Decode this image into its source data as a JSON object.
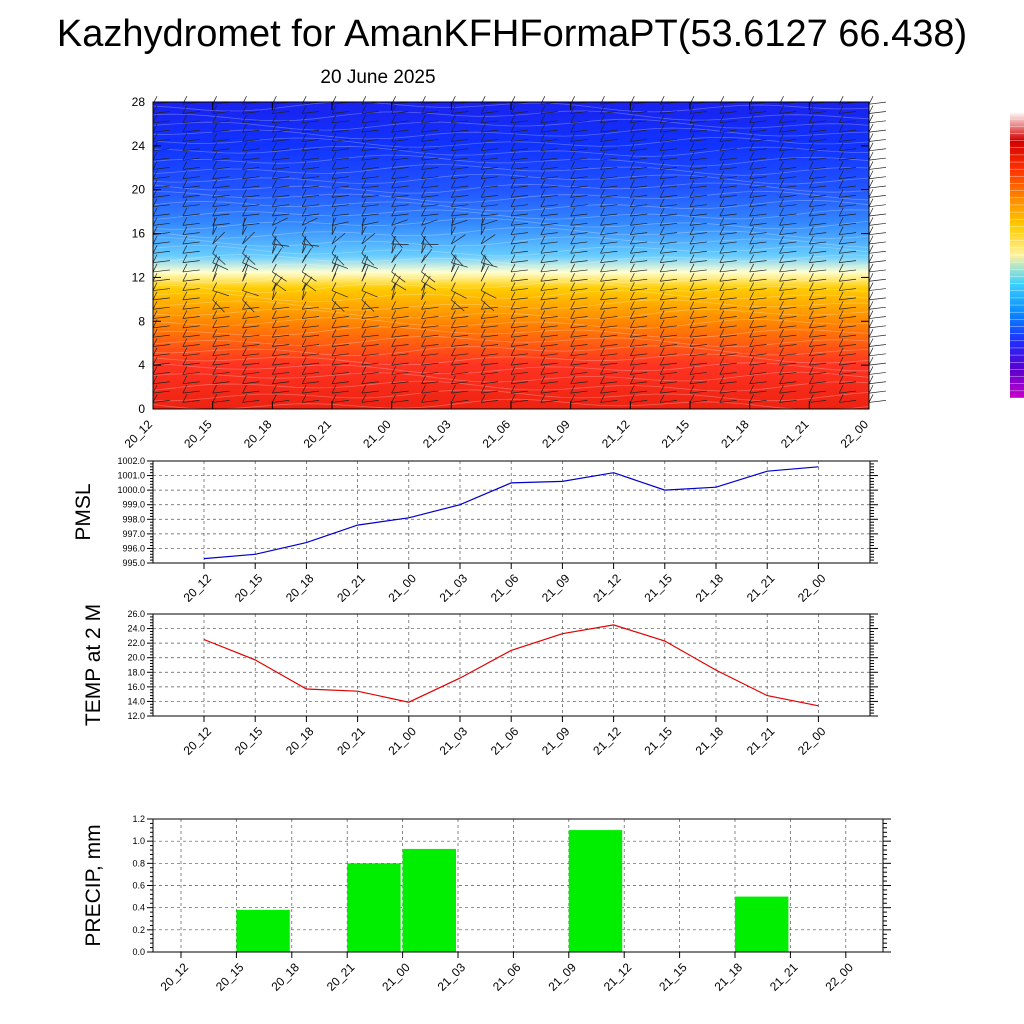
{
  "title": "Kazhydromet for AmanKFHFormaPT(53.6127 66.438)",
  "subtitle": "20 June 2025",
  "time_labels": [
    "20_12",
    "20_15",
    "20_18",
    "20_21",
    "21_00",
    "21_03",
    "21_06",
    "21_09",
    "21_12",
    "21_15",
    "21_18",
    "21_21",
    "22_00"
  ],
  "colors": {
    "pmsl_line": "#0000cc",
    "temp_line": "#e00000",
    "precip_bar": "#00ee00",
    "grid": "#555555"
  },
  "chart_data": [
    {
      "type": "heatmap",
      "title": "",
      "xlabel": "",
      "ylabel": "",
      "y_ticks": [
        0,
        4,
        8,
        12,
        16,
        20,
        24,
        28
      ],
      "ylim": [
        0,
        28
      ],
      "x": [
        "20_12",
        "20_15",
        "20_18",
        "20_21",
        "21_00",
        "21_03",
        "21_06",
        "21_09",
        "21_12",
        "21_15",
        "21_18",
        "21_21",
        "22_00"
      ],
      "colormap": [
        "#c800c8",
        "#5a00d0",
        "#1e2fff",
        "#0a8cff",
        "#3cd2ff",
        "#fff2a0",
        "#ffcc00",
        "#ff8800",
        "#ff3000",
        "#d20000",
        "#ffffff"
      ],
      "field_levels": [
        {
          "level": 0,
          "color": "#ee2211"
        },
        {
          "level": 4,
          "color": "#ff3322"
        },
        {
          "level": 8,
          "color": "#ff8800"
        },
        {
          "level": 11,
          "color": "#ffcc00"
        },
        {
          "level": 12.5,
          "color": "#ffffd0"
        },
        {
          "level": 14,
          "color": "#66ccff"
        },
        {
          "level": 17,
          "color": "#3388ff"
        },
        {
          "level": 20,
          "color": "#2255ff"
        },
        {
          "level": 24,
          "color": "#1133ff"
        },
        {
          "level": 28,
          "color": "#1a22ee"
        }
      ],
      "wind_barbs": true
    },
    {
      "type": "line",
      "ylabel": "PMSL",
      "y_ticks": [
        "995.0",
        "996.0",
        "997.0",
        "998.0",
        "999.0",
        "1000.0",
        "1001.0",
        "1002.0"
      ],
      "ylim": [
        995,
        1002
      ],
      "x": [
        "20_12",
        "20_15",
        "20_18",
        "20_21",
        "21_00",
        "21_03",
        "21_06",
        "21_09",
        "21_12",
        "21_15",
        "21_18",
        "21_21",
        "22_00"
      ],
      "series": [
        {
          "values": [
            995.3,
            995.6,
            996.4,
            997.6,
            998.1,
            999.0,
            1000.5,
            1000.6,
            1001.2,
            1000.0,
            1000.2,
            1001.3,
            1001.6
          ]
        }
      ],
      "grid": true
    },
    {
      "type": "line",
      "ylabel": "TEMP at 2 M",
      "y_ticks": [
        "12.0",
        "14.0",
        "16.0",
        "18.0",
        "20.0",
        "22.0",
        "24.0",
        "26.0"
      ],
      "ylim": [
        12,
        26
      ],
      "x": [
        "20_12",
        "20_15",
        "20_18",
        "20_21",
        "21_00",
        "21_03",
        "21_06",
        "21_09",
        "21_12",
        "21_15",
        "21_18",
        "21_21",
        "22_00"
      ],
      "series": [
        {
          "values": [
            22.5,
            19.7,
            15.7,
            15.4,
            13.9,
            17.2,
            21.0,
            23.3,
            24.5,
            22.3,
            18.3,
            14.8,
            13.4
          ]
        }
      ],
      "grid": true
    },
    {
      "type": "bar",
      "ylabel": "PRECIP, mm",
      "y_ticks": [
        "0.0",
        "0.2",
        "0.4",
        "0.6",
        "0.8",
        "1.0",
        "1.2"
      ],
      "ylim": [
        0,
        1.2
      ],
      "categories": [
        "20_12",
        "20_15",
        "20_18",
        "20_21",
        "21_00",
        "21_03",
        "21_06",
        "21_09",
        "21_12",
        "21_15",
        "21_18",
        "21_21",
        "22_00"
      ],
      "values": [
        0,
        0.38,
        0,
        0.8,
        0.93,
        0,
        0,
        1.1,
        0,
        0,
        0.5,
        0,
        0
      ],
      "grid": true
    }
  ]
}
